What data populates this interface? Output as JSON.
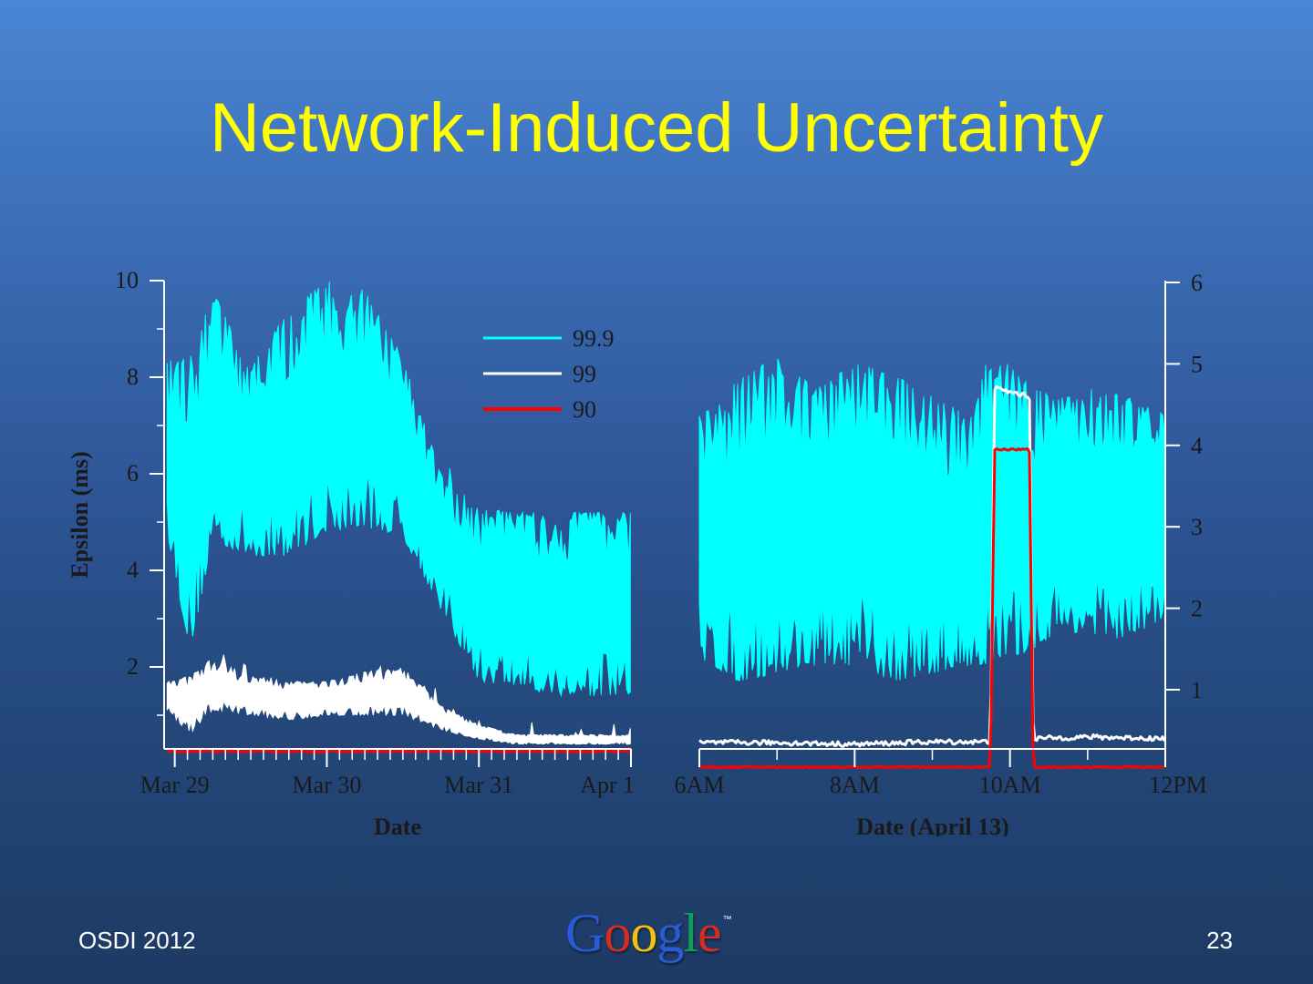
{
  "slide": {
    "title": "Network-Induced Uncertainty",
    "footer_left": "OSDI 2012",
    "page_number": "23",
    "logo_text": "Google",
    "logo_tm": "™",
    "logo_colors": [
      "#2a5bd7",
      "#d62d20",
      "#f4c20d",
      "#2a5bd7",
      "#0f9d58",
      "#d62d20"
    ]
  },
  "colors": {
    "p999": "#00ffff",
    "p99": "#ffffff",
    "p90": "#ff0000",
    "axis": "#ffffff",
    "text": "#1a1a1a"
  },
  "chart_data": [
    {
      "type": "line",
      "xlabel": "Date",
      "ylabel": "Epsilon (ms)",
      "ylim": [
        0,
        10
      ],
      "yticks": [
        2,
        4,
        6,
        8,
        10
      ],
      "x_unit": "days from Mar 29",
      "xlim": [
        -0.07,
        3.0
      ],
      "xticks": [
        {
          "value": 0,
          "label": "Mar 29"
        },
        {
          "value": 1,
          "label": "Mar 30"
        },
        {
          "value": 2,
          "label": "Mar 31"
        },
        {
          "value": 3,
          "label": "Apr 1"
        }
      ],
      "legend": {
        "placement": "top-right",
        "entries": [
          "99.9",
          "99",
          "90"
        ]
      },
      "series": [
        {
          "name": "99.9",
          "x": [
            -0.05,
            0.1,
            0.25,
            0.5,
            0.75,
            1.0,
            1.25,
            1.5,
            1.75,
            2.0,
            2.25,
            2.5,
            2.75,
            3.0
          ],
          "low": [
            4.8,
            2.3,
            4.6,
            4.3,
            4.3,
            4.8,
            4.9,
            4.7,
            3.2,
            1.7,
            1.6,
            1.4,
            1.4,
            1.4
          ],
          "high": [
            8.3,
            8.6,
            9.8,
            8.2,
            9.4,
            10.0,
            9.8,
            8.4,
            6.0,
            5.3,
            5.2,
            5.2,
            5.2,
            5.2
          ]
        },
        {
          "name": "99",
          "x": [
            -0.05,
            0.1,
            0.25,
            0.5,
            0.75,
            1.0,
            1.25,
            1.5,
            1.75,
            2.0,
            2.25,
            2.5,
            2.75,
            3.0
          ],
          "low": [
            1.1,
            0.6,
            1.1,
            1.0,
            0.9,
            1.0,
            1.0,
            1.0,
            0.7,
            0.5,
            0.4,
            0.4,
            0.4,
            0.4
          ],
          "high": [
            1.7,
            1.8,
            2.2,
            1.8,
            1.7,
            1.7,
            1.9,
            2.0,
            1.2,
            0.8,
            0.6,
            0.6,
            0.6,
            0.6
          ]
        },
        {
          "name": "90",
          "x": [
            -0.05,
            3.0
          ],
          "values": [
            0.25,
            0.25
          ]
        }
      ]
    },
    {
      "type": "line",
      "xlabel": "Date (April 13)",
      "ylabel": "",
      "ylim": [
        0,
        6
      ],
      "yticks": [
        1,
        2,
        3,
        4,
        5,
        6
      ],
      "y_axis_side": "right",
      "x_unit": "hour of day",
      "xlim": [
        6,
        12
      ],
      "xticks": [
        {
          "value": 6,
          "label": "6AM"
        },
        {
          "value": 8,
          "label": "8AM"
        },
        {
          "value": 10,
          "label": "10AM"
        },
        {
          "value": 12,
          "label": "12PM"
        }
      ],
      "series": [
        {
          "name": "99.9",
          "x": [
            6,
            6.5,
            7,
            7.5,
            8,
            8.5,
            9,
            9.5,
            9.75,
            10.3,
            10.6,
            11,
            11.5,
            12
          ],
          "low": [
            1.4,
            1.1,
            1.2,
            1.3,
            1.3,
            1.1,
            1.2,
            1.3,
            1.3,
            1.5,
            1.7,
            1.7,
            1.6,
            1.9
          ],
          "high": [
            4.4,
            4.8,
            5.1,
            4.7,
            5.0,
            4.9,
            4.6,
            4.4,
            5.2,
            4.7,
            4.6,
            4.7,
            4.6,
            4.4
          ]
        },
        {
          "name": "99",
          "x": [
            6,
            7,
            8,
            9,
            9.75,
            9.8,
            10.25,
            10.3,
            11,
            12
          ],
          "values": [
            0.35,
            0.35,
            0.33,
            0.36,
            0.36,
            4.7,
            4.6,
            0.4,
            0.42,
            0.4
          ]
        },
        {
          "name": "90",
          "x": [
            6,
            7,
            8,
            9,
            9.75,
            9.8,
            10.25,
            10.3,
            11,
            12
          ],
          "values": [
            0.05,
            0.05,
            0.05,
            0.05,
            0.05,
            3.95,
            3.95,
            0.05,
            0.05,
            0.05
          ]
        }
      ]
    }
  ]
}
